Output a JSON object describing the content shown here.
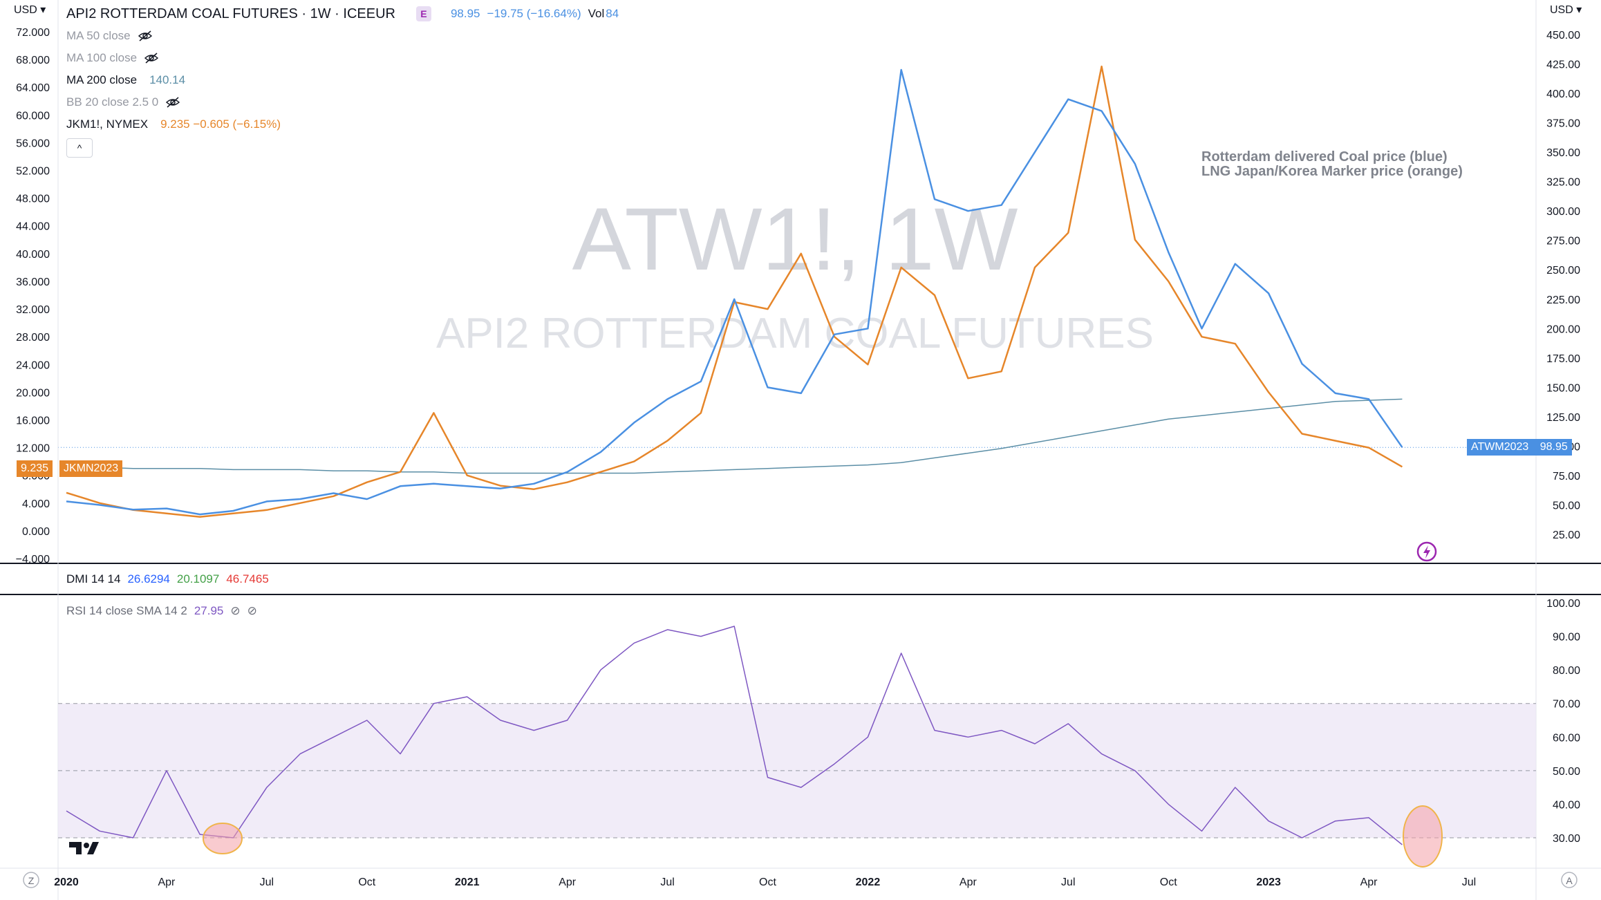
{
  "header": {
    "symbol_title": "API2 ROTTERDAM COAL FUTURES · 1W · ICEEUR",
    "badge": "E",
    "price": "98.95",
    "change": "−19.75 (−16.64%)",
    "vol_label": "Vol",
    "vol_value": "84",
    "currency_left": "USD",
    "currency_right": "USD"
  },
  "legend": {
    "ma50": "MA 50 close",
    "ma100": "MA 100 close",
    "ma200_label": "MA 200 close",
    "ma200_value": "140.14",
    "bb": "BB 20 close 2.5 0",
    "jkm_label": "JKM1!, NYMEX",
    "jkm_values": "9.235  −0.605 (−6.15%)",
    "collapse": "^"
  },
  "watermark": {
    "big": "ATW1!, 1W",
    "sub": "API2 ROTTERDAM COAL FUTURES"
  },
  "annotation": {
    "line1": "Rotterdam delivered Coal price (blue)",
    "line2": "LNG Japan/Korea Marker price (orange)"
  },
  "price_tags": {
    "atwm_label": "ATWM2023",
    "atwm_value": "98.95",
    "jkm_value": "9.235",
    "jkm_label": "JKMN2023"
  },
  "dmi": {
    "label": "DMI 14 14",
    "v1": "26.6294",
    "v2": "20.1097",
    "v3": "46.7465"
  },
  "rsi_legend": {
    "label": "RSI 14 close SMA 14 2",
    "value": "27.95"
  },
  "colors": {
    "coal": "#4a90e2",
    "lng": "#e6862a",
    "ma200": "#5b8ea6",
    "rsi": "#7e57c2",
    "band": "#ede7f6"
  },
  "chart_data": [
    {
      "type": "line",
      "x_ticks": [
        "2020",
        "Apr",
        "Jul",
        "Oct",
        "2021",
        "Apr",
        "Jul",
        "Oct",
        "2022",
        "Apr",
        "Jul",
        "Oct",
        "2023",
        "Apr",
        "Jul"
      ],
      "x": [
        "2020-01",
        "2020-02",
        "2020-03",
        "2020-04",
        "2020-05",
        "2020-06",
        "2020-07",
        "2020-08",
        "2020-09",
        "2020-10",
        "2020-11",
        "2020-12",
        "2021-01",
        "2021-02",
        "2021-03",
        "2021-04",
        "2021-05",
        "2021-06",
        "2021-07",
        "2021-08",
        "2021-09",
        "2021-10",
        "2021-11",
        "2021-12",
        "2022-01",
        "2022-02",
        "2022-03",
        "2022-04",
        "2022-05",
        "2022-06",
        "2022-07",
        "2022-08",
        "2022-09",
        "2022-10",
        "2022-11",
        "2022-12",
        "2023-01",
        "2023-02",
        "2023-03",
        "2023-04",
        "2023-05"
      ],
      "left_axis": {
        "ticks": [
          "72.000",
          "68.000",
          "64.000",
          "60.000",
          "56.000",
          "52.000",
          "48.000",
          "44.000",
          "40.000",
          "36.000",
          "32.000",
          "28.000",
          "24.000",
          "20.000",
          "16.000",
          "12.000",
          "8.000",
          "4.000",
          "0.000",
          "−4.000"
        ]
      },
      "right_axis": {
        "ticks": [
          "450.00",
          "425.00",
          "400.00",
          "375.00",
          "350.00",
          "325.00",
          "300.00",
          "275.00",
          "250.00",
          "225.00",
          "200.00",
          "175.00",
          "150.00",
          "125.00",
          "100.00",
          "75.00",
          "50.00",
          "25.00"
        ]
      },
      "series": [
        {
          "name": "Rotterdam delivered Coal price (blue)",
          "axis": "right",
          "values": [
            53,
            50,
            46,
            47,
            42,
            45,
            53,
            55,
            60,
            55,
            66,
            68,
            66,
            64,
            68,
            78,
            95,
            120,
            140,
            155,
            225,
            150,
            145,
            195,
            200,
            420,
            310,
            300,
            305,
            350,
            395,
            385,
            340,
            265,
            200,
            255,
            230,
            170,
            145,
            140,
            99
          ]
        },
        {
          "name": "LNG Japan/Korea Marker price (orange)",
          "axis": "left",
          "values": [
            5.5,
            4.0,
            3.0,
            2.5,
            2.0,
            2.5,
            3.0,
            4.0,
            5.0,
            7.0,
            8.5,
            17.0,
            8.0,
            6.5,
            6.0,
            7.0,
            8.5,
            10.0,
            13.0,
            17.0,
            33.0,
            32.0,
            40.0,
            28.0,
            24.0,
            38.0,
            34.0,
            22.0,
            23.0,
            38.0,
            43.0,
            67.0,
            42.0,
            36.0,
            28.0,
            27.0,
            20.0,
            14.0,
            13.0,
            12.0,
            9.235
          ]
        },
        {
          "name": "MA 200 close",
          "axis": "right",
          "values": [
            82,
            82,
            81,
            81,
            81,
            80,
            80,
            80,
            79,
            79,
            78,
            78,
            77,
            77,
            77,
            77,
            77,
            77,
            78,
            79,
            80,
            81,
            82,
            83,
            84,
            86,
            90,
            94,
            98,
            103,
            108,
            113,
            118,
            123,
            126,
            129,
            132,
            135,
            138,
            139,
            140
          ]
        }
      ]
    },
    {
      "type": "line",
      "title": "RSI 14 close SMA 14 2",
      "x": [
        "2020-01",
        "2020-02",
        "2020-03",
        "2020-04",
        "2020-05",
        "2020-06",
        "2020-07",
        "2020-08",
        "2020-09",
        "2020-10",
        "2020-11",
        "2020-12",
        "2021-01",
        "2021-02",
        "2021-03",
        "2021-04",
        "2021-05",
        "2021-06",
        "2021-07",
        "2021-08",
        "2021-09",
        "2021-10",
        "2021-11",
        "2021-12",
        "2022-01",
        "2022-02",
        "2022-03",
        "2022-04",
        "2022-05",
        "2022-06",
        "2022-07",
        "2022-08",
        "2022-09",
        "2022-10",
        "2022-11",
        "2022-12",
        "2023-01",
        "2023-02",
        "2023-03",
        "2023-04",
        "2023-05"
      ],
      "y_axis": {
        "ticks": [
          "100.00",
          "90.00",
          "80.00",
          "70.00",
          "60.00",
          "50.00",
          "40.00",
          "30.00"
        ]
      },
      "bands": {
        "upper": 70,
        "middle": 50,
        "lower": 30
      },
      "series": [
        {
          "name": "RSI",
          "values": [
            38,
            32,
            30,
            50,
            31,
            30,
            45,
            55,
            60,
            65,
            55,
            70,
            72,
            65,
            62,
            65,
            80,
            88,
            92,
            90,
            93,
            48,
            45,
            52,
            60,
            85,
            62,
            60,
            62,
            58,
            64,
            55,
            50,
            40,
            32,
            45,
            35,
            30,
            35,
            36,
            27.95
          ]
        }
      ]
    }
  ]
}
